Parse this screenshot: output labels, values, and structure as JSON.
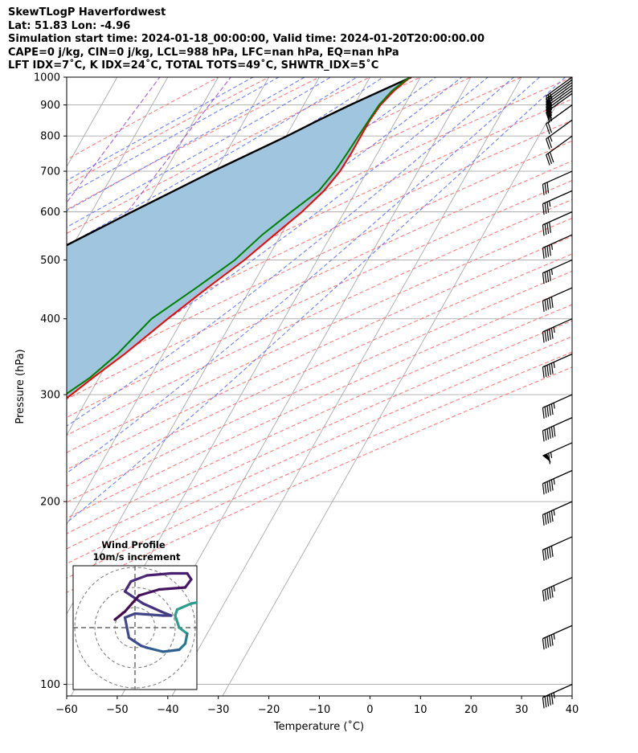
{
  "header": {
    "line1": "SkewTLogP Haverfordwest",
    "line2": "Lat: 51.83   Lon: -4.96",
    "line3": "Simulation start time: 2024-01-18_00:00:00, Valid time: 2024-01-20T20:00:00.00",
    "line4": "CAPE=0 j/kg, CIN=0 j/kg, LCL=988 hPa, LFC=nan hPa, EQ=nan hPa",
    "line5": "LFT IDX=7˚C, K IDX=24˚C, TOTAL TOTS=49˚C, SHWTR_IDX=5˚C"
  },
  "chart_data": {
    "type": "line",
    "title": "SkewTLogP Haverfordwest",
    "xlabel": "Temperature (˚C)",
    "ylabel": "Pressure (hPa)",
    "xlim": [
      -60,
      40
    ],
    "ylim": [
      1030,
      100
    ],
    "x_ticks": [
      "−60",
      "−50",
      "−40",
      "−30",
      "−20",
      "−10",
      "0",
      "10",
      "20",
      "30",
      "40"
    ],
    "y_ticks": [
      "100",
      "200",
      "300",
      "400",
      "500",
      "600",
      "700",
      "800",
      "900",
      "1000"
    ],
    "colors": {
      "temperature": "#ff0000",
      "dewpoint": "#008000",
      "parcel": "#000000",
      "shade": "#a0c5df",
      "dry_adiabat": "#ff6666",
      "moist_adiabat": "#5566ff",
      "isotherm": "#aaaaaa",
      "mixing_ratio": "#9933cc"
    },
    "series": [
      {
        "name": "Temperature",
        "p": [
          1000,
          950,
          900,
          850,
          800,
          750,
          700,
          650,
          600,
          550,
          500,
          450,
          400,
          350,
          320,
          300,
          280,
          260,
          240,
          230,
          220,
          215,
          205,
          200,
          180,
          160,
          140,
          120,
          100
        ],
        "t": [
          8.0,
          6.3,
          5.2,
          4.8,
          4.8,
          4.8,
          4.6,
          3.6,
          1.6,
          -1.3,
          -4.4,
          -8.6,
          -13.0,
          -17.6,
          -21.2,
          -23.6,
          -26.4,
          -29.2,
          -32.6,
          -34.0,
          -31.9,
          -29.4,
          -27.6,
          -25.3,
          -18.0,
          -15.0,
          -13.5,
          -13.2,
          -12.9
        ]
      },
      {
        "name": "Dewpoint",
        "p": [
          1000,
          950,
          900,
          850,
          800,
          750,
          700,
          650,
          600,
          550,
          500,
          450,
          400,
          350,
          320,
          300,
          280,
          260,
          240,
          230,
          220,
          210,
          190,
          170,
          150,
          130,
          115,
          100
        ],
        "t": [
          7.8,
          5.9,
          4.9,
          4.6,
          4.3,
          4.0,
          3.6,
          2.6,
          -0.5,
          -3.7,
          -6.3,
          -10.8,
          -16.2,
          -19.0,
          -21.8,
          -24.8,
          -28.7,
          -32.0,
          -35.4,
          -37.2,
          -35.0,
          -35.5,
          -39.2,
          -44.0,
          -45.8,
          -48.9,
          -49.0,
          -50.3
        ]
      },
      {
        "name": "Parcel",
        "p": [
          1000,
          950,
          900,
          850,
          800,
          700,
          600,
          500,
          400,
          300,
          250,
          200,
          150,
          100
        ],
        "t": [
          8.2,
          3.8,
          -0.8,
          -5.3,
          -9.8,
          -20.5,
          -32.0,
          -45.3,
          -61.0,
          -80.7,
          -92.7,
          -106.4,
          -123.1,
          -145.0
        ]
      }
    ],
    "wind_barb_pressures": [
      1000,
      990,
      980,
      970,
      960,
      950,
      940,
      900,
      850,
      800,
      700,
      650,
      600,
      550,
      500,
      450,
      400,
      350,
      300,
      275,
      250,
      225,
      200,
      175,
      150,
      125,
      100
    ],
    "wind_barb_speeds_kt": [
      25,
      25,
      20,
      20,
      20,
      20,
      20,
      20,
      25,
      30,
      30,
      35,
      40,
      45,
      45,
      50,
      55,
      55,
      55,
      60,
      65,
      55,
      55,
      50,
      55,
      55,
      55
    ],
    "inset": {
      "title": "Wind Profile",
      "subtitle": "10m/s increment",
      "rings": [
        1,
        2,
        3
      ],
      "hodograph_u": [
        6.5,
        4.5,
        2.8,
        2.1,
        2.0,
        2.2,
        2.6,
        2.5,
        2.2,
        1.4,
        0.6,
        0.3,
        0.0,
        -0.3,
        -0.5,
        0.0,
        1.4,
        1.8,
        1.3,
        0.4,
        -0.5,
        -0.2,
        0.6,
        1.8,
        2.6,
        2.8,
        2.5,
        1.2,
        0.2,
        -0.5,
        -1.0
      ],
      "hodograph_v": [
        1.8,
        1.5,
        1.2,
        0.9,
        0.6,
        0.0,
        -0.3,
        -0.8,
        -1.1,
        -1.2,
        -1.0,
        -0.9,
        -0.7,
        -0.5,
        0.5,
        0.7,
        0.6,
        0.6,
        0.8,
        1.2,
        1.8,
        2.3,
        2.6,
        2.7,
        2.7,
        2.4,
        2.0,
        1.9,
        1.6,
        0.8,
        0.4
      ]
    }
  }
}
